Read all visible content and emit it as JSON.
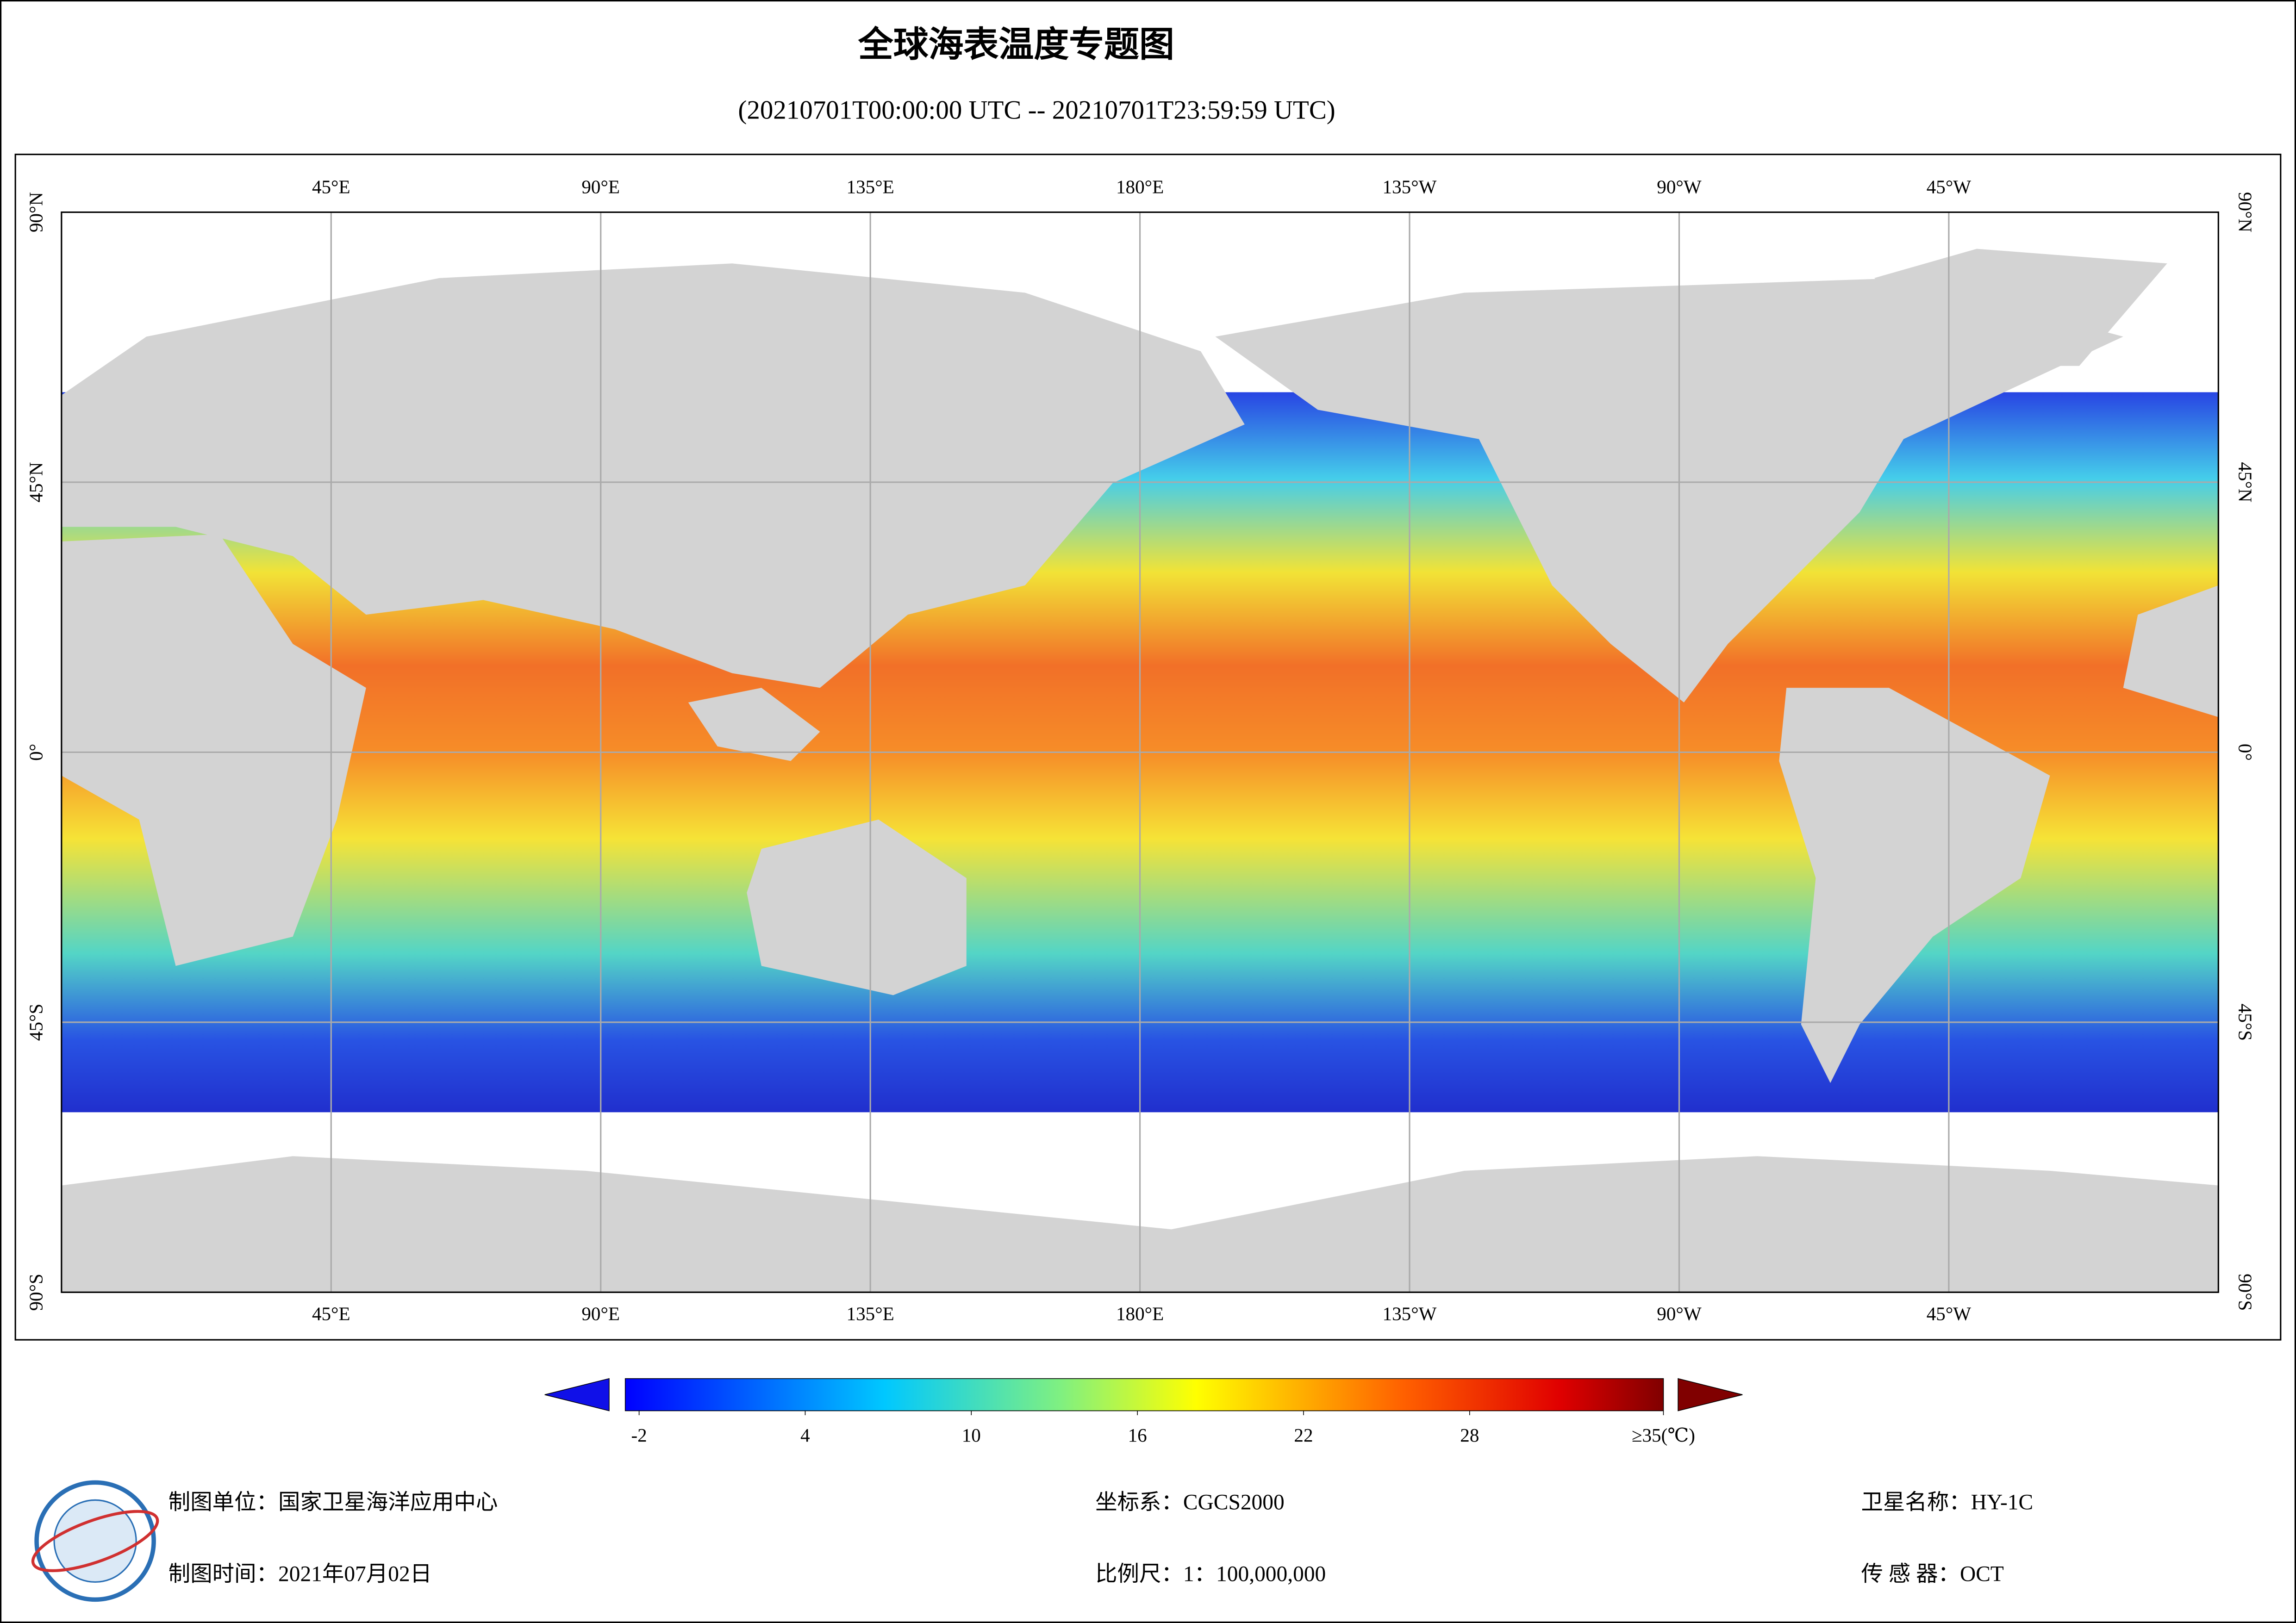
{
  "header": {
    "title": "全球海表温度专题图",
    "subtitle": "(20210701T00:00:00 UTC -- 20210701T23:59:59 UTC)"
  },
  "map": {
    "lonlim": [
      0,
      360
    ],
    "latlim": [
      -90,
      90
    ],
    "lon_ticks": [
      {
        "value": 45,
        "label": "45°E"
      },
      {
        "value": 90,
        "label": "90°E"
      },
      {
        "value": 135,
        "label": "135°E"
      },
      {
        "value": 180,
        "label": "180°E"
      },
      {
        "value": 225,
        "label": "135°W"
      },
      {
        "value": 270,
        "label": "90°W"
      },
      {
        "value": 315,
        "label": "45°W"
      }
    ],
    "lat_ticks": [
      {
        "value": 90,
        "label": "90°N"
      },
      {
        "value": 45,
        "label": "45°N"
      },
      {
        "value": 0,
        "label": "0°"
      },
      {
        "value": -45,
        "label": "45°S"
      },
      {
        "value": -90,
        "label": "90°S"
      }
    ]
  },
  "colorbar": {
    "lim": [
      -2.5,
      35
    ],
    "ticks": [
      -2,
      4,
      10,
      16,
      22,
      28,
      {
        "value": 35,
        "label": "≥35(℃)"
      }
    ]
  },
  "footer": {
    "producer": "制图单位：国家卫星海洋应用中心",
    "date": "制图时间：2021年07月02日",
    "crs": "坐标系：CGCS2000",
    "scale": "比例尺：1：100,000,000",
    "satellite": "卫星名称：HY-1C",
    "sensor": "传 感 器：OCT"
  }
}
